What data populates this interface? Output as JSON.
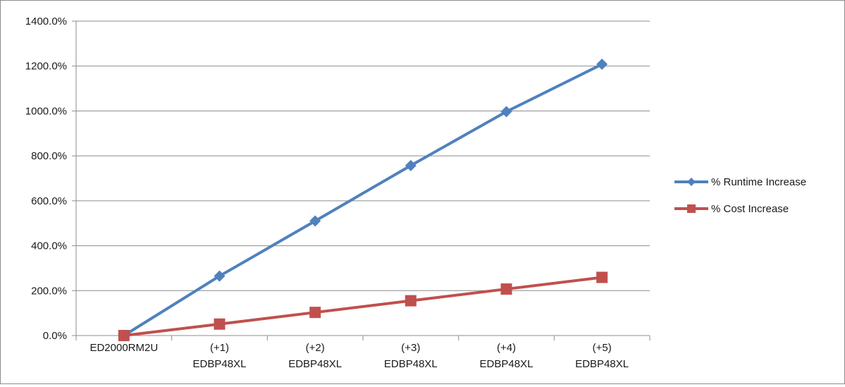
{
  "chart_data": {
    "type": "line",
    "title": "",
    "xlabel": "",
    "ylabel": "",
    "categories": [
      [
        "ED2000RM2U"
      ],
      [
        "(+1)",
        "EDBP48XL"
      ],
      [
        "(+2)",
        "EDBP48XL"
      ],
      [
        "(+3)",
        "EDBP48XL"
      ],
      [
        "(+4)",
        "EDBP48XL"
      ],
      [
        "(+5)",
        "EDBP48XL"
      ]
    ],
    "y_ticks": [
      "0.0%",
      "200.0%",
      "400.0%",
      "600.0%",
      "800.0%",
      "1000.0%",
      "1200.0%",
      "1400.0%"
    ],
    "ylim": [
      0,
      1400
    ],
    "y_unit": "%",
    "grid": true,
    "legend_position": "right",
    "series": [
      {
        "name": "% Runtime Increase",
        "color": "#4f81bd",
        "marker": "diamond",
        "values": [
          0,
          265,
          510,
          757,
          997,
          1208
        ]
      },
      {
        "name": "% Cost Increase",
        "color": "#c0504d",
        "marker": "square",
        "values": [
          0,
          51,
          103,
          155,
          207,
          259
        ]
      }
    ]
  }
}
